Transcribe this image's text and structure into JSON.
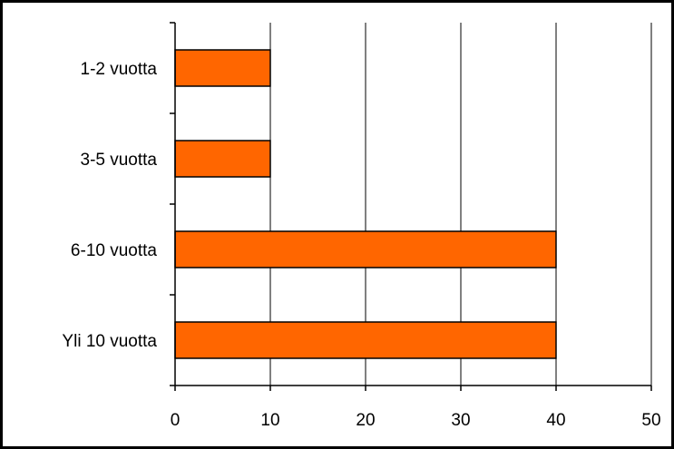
{
  "chart_data": {
    "type": "bar",
    "orientation": "horizontal",
    "title": "",
    "xlabel": "",
    "ylabel": "",
    "categories": [
      "1-2 vuotta",
      "3-5 vuotta",
      "6-10 vuotta",
      "Yli 10 vuotta"
    ],
    "values": [
      10,
      10,
      40,
      40
    ],
    "xlim": [
      0,
      50
    ],
    "xticks": [
      0,
      10,
      20,
      30,
      40,
      50
    ],
    "grid": "vertical",
    "legend": "none",
    "bar_color": "#FF6600"
  }
}
